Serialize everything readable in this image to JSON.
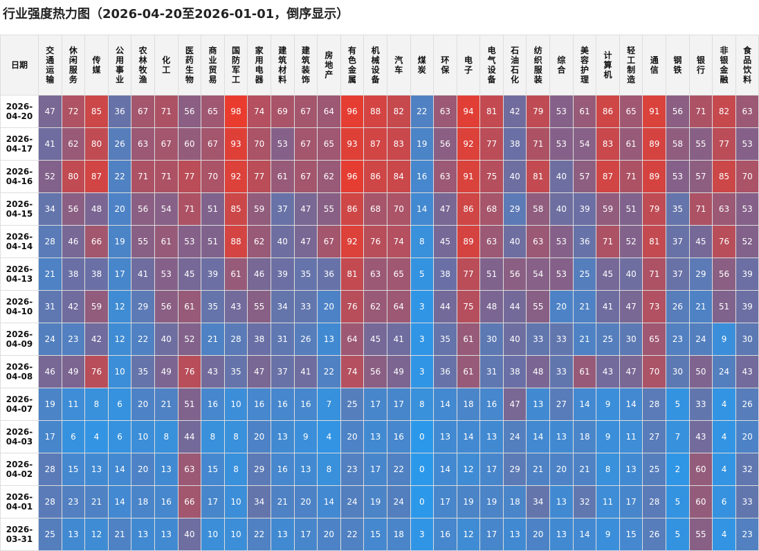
{
  "title": "行业强度热力图（2026-04-20至2026-01-01，倒序显示）",
  "colors": {
    "low": "#2c98ea",
    "mid": "#7e648f",
    "high": "#ee3a2a"
  },
  "chart_data": {
    "type": "heatmap",
    "title": "行业强度热力图（2026-04-20至2026-01-01，倒序显示）",
    "row_header": "日期",
    "columns": [
      "交通运输",
      "休闲服务",
      "传媒",
      "公用事业",
      "农林牧渔",
      "化工",
      "医药生物",
      "商业贸易",
      "国防军工",
      "家用电器",
      "建筑材料",
      "建筑装饰",
      "房地产",
      "有色金属",
      "机械设备",
      "汽车",
      "煤炭",
      "环保",
      "电子",
      "电气设备",
      "石油石化",
      "纺织服装",
      "综合",
      "美容护理",
      "计算机",
      "轻工制造",
      "通信",
      "钢铁",
      "银行",
      "非银金融",
      "食品饮料"
    ],
    "rows": [
      {
        "date": "2026-04-20",
        "values": [
          47,
          72,
          85,
          36,
          67,
          71,
          56,
          65,
          98,
          74,
          69,
          67,
          64,
          96,
          88,
          82,
          22,
          63,
          94,
          81,
          42,
          79,
          53,
          61,
          86,
          65,
          91,
          56,
          71,
          82,
          63
        ]
      },
      {
        "date": "2026-04-17",
        "values": [
          41,
          62,
          80,
          26,
          63,
          67,
          60,
          67,
          93,
          70,
          53,
          67,
          65,
          93,
          87,
          83,
          19,
          56,
          92,
          77,
          38,
          71,
          53,
          54,
          83,
          61,
          89,
          58,
          55,
          77,
          53
        ]
      },
      {
        "date": "2026-04-16",
        "values": [
          52,
          80,
          87,
          22,
          71,
          71,
          77,
          70,
          92,
          77,
          61,
          67,
          62,
          96,
          86,
          84,
          16,
          63,
          91,
          75,
          40,
          81,
          40,
          57,
          87,
          71,
          89,
          53,
          57,
          85,
          70
        ]
      },
      {
        "date": "2026-04-15",
        "values": [
          34,
          56,
          48,
          20,
          56,
          54,
          71,
          51,
          85,
          59,
          37,
          47,
          55,
          86,
          68,
          70,
          14,
          47,
          86,
          68,
          29,
          58,
          40,
          39,
          59,
          51,
          79,
          35,
          71,
          63,
          53
        ]
      },
      {
        "date": "2026-04-14",
        "values": [
          28,
          46,
          66,
          19,
          55,
          61,
          53,
          51,
          88,
          62,
          40,
          47,
          67,
          92,
          76,
          74,
          8,
          45,
          89,
          63,
          40,
          63,
          53,
          36,
          71,
          52,
          81,
          37,
          45,
          76,
          52
        ]
      },
      {
        "date": "2026-04-13",
        "values": [
          21,
          38,
          38,
          17,
          41,
          53,
          45,
          39,
          61,
          46,
          39,
          35,
          36,
          81,
          63,
          65,
          5,
          38,
          77,
          51,
          56,
          54,
          53,
          25,
          45,
          40,
          71,
          37,
          29,
          56,
          39
        ]
      },
      {
        "date": "2026-04-10",
        "values": [
          31,
          42,
          59,
          12,
          29,
          56,
          61,
          35,
          43,
          55,
          34,
          33,
          20,
          76,
          62,
          64,
          3,
          44,
          75,
          48,
          44,
          55,
          20,
          21,
          41,
          47,
          73,
          26,
          21,
          51,
          39
        ]
      },
      {
        "date": "2026-04-09",
        "values": [
          24,
          23,
          42,
          12,
          22,
          40,
          52,
          21,
          28,
          38,
          31,
          26,
          13,
          64,
          45,
          41,
          3,
          35,
          61,
          30,
          40,
          33,
          33,
          21,
          25,
          30,
          65,
          23,
          24,
          9,
          30
        ]
      },
      {
        "date": "2026-04-08",
        "values": [
          46,
          49,
          76,
          10,
          35,
          49,
          76,
          43,
          35,
          47,
          37,
          41,
          22,
          74,
          56,
          49,
          3,
          36,
          61,
          31,
          38,
          48,
          33,
          61,
          43,
          47,
          70,
          30,
          50,
          24,
          43
        ]
      },
      {
        "date": "2026-04-07",
        "values": [
          19,
          11,
          8,
          6,
          20,
          21,
          51,
          16,
          10,
          16,
          16,
          16,
          7,
          25,
          17,
          17,
          8,
          14,
          18,
          16,
          47,
          13,
          27,
          14,
          9,
          14,
          28,
          5,
          33,
          4,
          26
        ]
      },
      {
        "date": "2026-04-03",
        "values": [
          17,
          6,
          4,
          6,
          10,
          8,
          44,
          8,
          8,
          20,
          13,
          9,
          4,
          20,
          13,
          16,
          0,
          13,
          14,
          13,
          24,
          14,
          13,
          18,
          9,
          11,
          27,
          7,
          43,
          4,
          20
        ]
      },
      {
        "date": "2026-04-02",
        "values": [
          28,
          15,
          13,
          14,
          20,
          13,
          63,
          15,
          8,
          29,
          16,
          13,
          8,
          23,
          17,
          22,
          0,
          14,
          12,
          17,
          29,
          21,
          20,
          21,
          8,
          13,
          25,
          2,
          60,
          4,
          32
        ]
      },
      {
        "date": "2026-04-01",
        "values": [
          28,
          23,
          21,
          14,
          18,
          16,
          66,
          17,
          10,
          34,
          21,
          20,
          14,
          24,
          19,
          24,
          0,
          17,
          19,
          19,
          18,
          34,
          13,
          32,
          11,
          17,
          28,
          5,
          60,
          6,
          33
        ]
      },
      {
        "date": "2026-03-31",
        "values": [
          25,
          13,
          12,
          21,
          13,
          13,
          40,
          10,
          10,
          22,
          13,
          17,
          20,
          22,
          15,
          18,
          3,
          16,
          12,
          17,
          13,
          20,
          13,
          14,
          9,
          15,
          26,
          5,
          55,
          4,
          23
        ]
      }
    ]
  }
}
